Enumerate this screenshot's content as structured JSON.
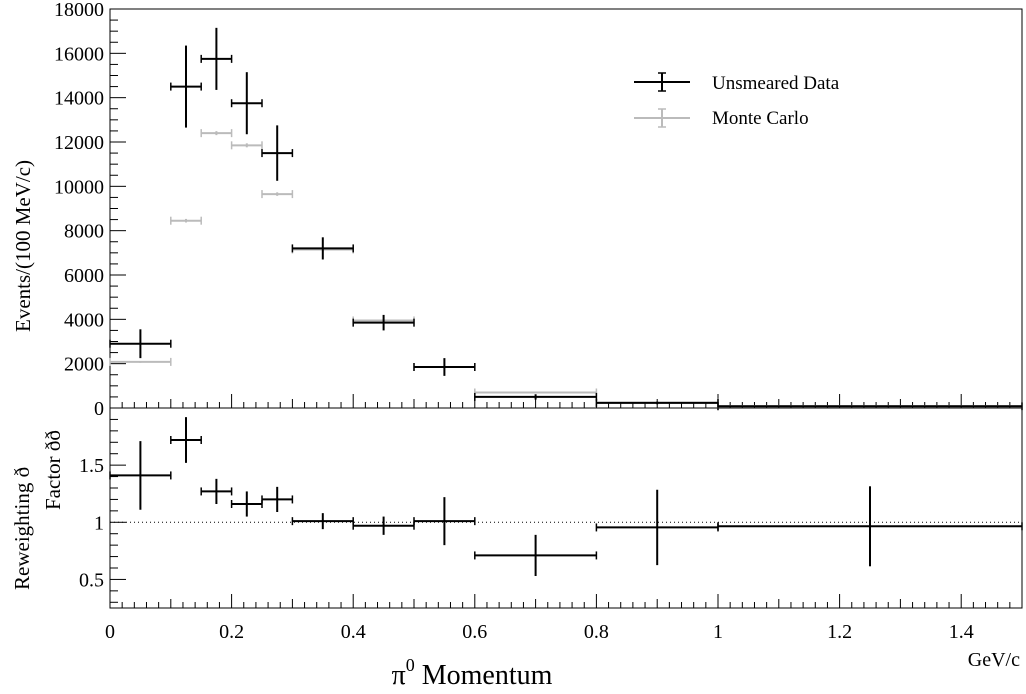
{
  "chart_data": [
    {
      "type": "scatter",
      "panel": "top",
      "title": "",
      "xlabel": "",
      "ylabel": "Events/(100 MeV/c)",
      "xlim": [
        0,
        1.5
      ],
      "ylim": [
        0,
        18000
      ],
      "y_ticks": [
        0,
        2000,
        4000,
        6000,
        8000,
        10000,
        12000,
        14000,
        16000,
        18000
      ],
      "y_tick_labels": [
        "0",
        "2000",
        "4000",
        "6000",
        "8000",
        "10000",
        "12000",
        "14000",
        "16000",
        "18000"
      ],
      "legend_position": "top-right",
      "series": [
        {
          "name": "Unsmeared Data",
          "color": "#000000",
          "points": [
            {
              "x_low": 0.0,
              "x_high": 0.1,
              "y": 2900,
              "err": 650
            },
            {
              "x_low": 0.1,
              "x_high": 0.15,
              "y": 14500,
              "err": 1850
            },
            {
              "x_low": 0.15,
              "x_high": 0.2,
              "y": 15750,
              "err": 1400
            },
            {
              "x_low": 0.2,
              "x_high": 0.25,
              "y": 13750,
              "err": 1400
            },
            {
              "x_low": 0.25,
              "x_high": 0.3,
              "y": 11500,
              "err": 1250
            },
            {
              "x_low": 0.3,
              "x_high": 0.4,
              "y": 7200,
              "err": 500
            },
            {
              "x_low": 0.4,
              "x_high": 0.5,
              "y": 3850,
              "err": 350
            },
            {
              "x_low": 0.5,
              "x_high": 0.6,
              "y": 1850,
              "err": 400
            },
            {
              "x_low": 0.6,
              "x_high": 0.8,
              "y": 500,
              "err": 120
            },
            {
              "x_low": 0.8,
              "x_high": 1.0,
              "y": 230,
              "err": 60
            },
            {
              "x_low": 1.0,
              "x_high": 1.5,
              "y": 80,
              "err": 20
            }
          ]
        },
        {
          "name": "Monte Carlo",
          "color": "#bbbbbb",
          "points": [
            {
              "x_low": 0.0,
              "x_high": 0.1,
              "y": 2080,
              "err": 40
            },
            {
              "x_low": 0.1,
              "x_high": 0.15,
              "y": 8450,
              "err": 80
            },
            {
              "x_low": 0.15,
              "x_high": 0.2,
              "y": 12400,
              "err": 90
            },
            {
              "x_low": 0.2,
              "x_high": 0.25,
              "y": 11850,
              "err": 90
            },
            {
              "x_low": 0.25,
              "x_high": 0.3,
              "y": 9650,
              "err": 80
            },
            {
              "x_low": 0.3,
              "x_high": 0.4,
              "y": 7150,
              "err": 70
            },
            {
              "x_low": 0.4,
              "x_high": 0.5,
              "y": 3950,
              "err": 60
            },
            {
              "x_low": 0.5,
              "x_high": 0.6,
              "y": 1850,
              "err": 40
            },
            {
              "x_low": 0.6,
              "x_high": 0.8,
              "y": 700,
              "err": 30
            },
            {
              "x_low": 0.8,
              "x_high": 1.0,
              "y": 240,
              "err": 20
            },
            {
              "x_low": 1.0,
              "x_high": 1.5,
              "y": 85,
              "err": 10
            }
          ]
        }
      ]
    },
    {
      "type": "scatter",
      "panel": "bottom",
      "title": "",
      "xlabel": "π⁰ Momentum",
      "xlabel_main": "π",
      "xlabel_sup": "0",
      "xlabel_rest": " Momentum",
      "x_unit": "GeV/c",
      "ylabel_line1": "Reweighting ð",
      "ylabel_line2": "Factor ðð",
      "xlim": [
        0,
        1.5
      ],
      "ylim": [
        0.25,
        2.0
      ],
      "reference_line": 1.0,
      "x_ticks": [
        0,
        0.2,
        0.4,
        0.6,
        0.8,
        1.0,
        1.2,
        1.4
      ],
      "x_tick_labels": [
        "0",
        "0.2",
        "0.4",
        "0.6",
        "0.8",
        "1",
        "1.2",
        "1.4"
      ],
      "y_ticks": [
        0.5,
        1.0,
        1.5
      ],
      "y_tick_labels": [
        "0.5",
        "1",
        "1.5"
      ],
      "series": [
        {
          "name": "",
          "color": "#000000",
          "points": [
            {
              "x_low": 0.0,
              "x_high": 0.1,
              "y": 1.41,
              "err": 0.3
            },
            {
              "x_low": 0.1,
              "x_high": 0.15,
              "y": 1.72,
              "err": 0.2
            },
            {
              "x_low": 0.15,
              "x_high": 0.2,
              "y": 1.27,
              "err": 0.11
            },
            {
              "x_low": 0.2,
              "x_high": 0.25,
              "y": 1.16,
              "err": 0.11
            },
            {
              "x_low": 0.25,
              "x_high": 0.3,
              "y": 1.2,
              "err": 0.11
            },
            {
              "x_low": 0.3,
              "x_high": 0.4,
              "y": 1.01,
              "err": 0.07
            },
            {
              "x_low": 0.4,
              "x_high": 0.5,
              "y": 0.97,
              "err": 0.08
            },
            {
              "x_low": 0.5,
              "x_high": 0.6,
              "y": 1.01,
              "err": 0.21
            },
            {
              "x_low": 0.6,
              "x_high": 0.8,
              "y": 0.71,
              "err": 0.18
            },
            {
              "x_low": 0.8,
              "x_high": 1.0,
              "y": 0.955,
              "err": 0.33
            },
            {
              "x_low": 1.0,
              "x_high": 1.5,
              "y": 0.965,
              "err": 0.35
            }
          ]
        }
      ]
    }
  ]
}
